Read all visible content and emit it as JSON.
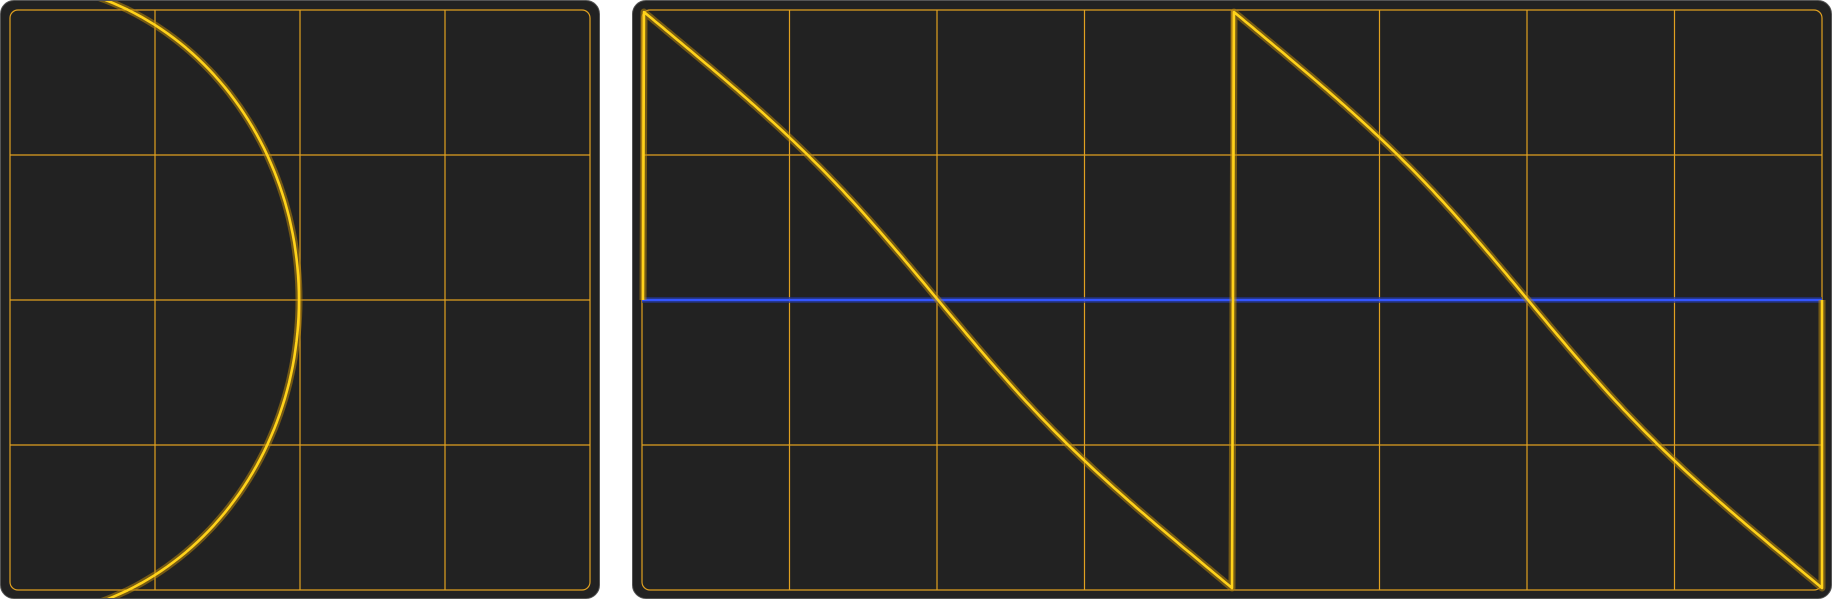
{
  "panels": [
    {
      "id": "xy-scope",
      "mode": "XY",
      "divisions": {
        "horizontal": 4,
        "vertical": 4
      },
      "trace": {
        "shape": "half-ellipse opening left",
        "color": "#ffd21a",
        "glow": "#b8860b"
      }
    },
    {
      "id": "time-scope",
      "mode": "time-domain",
      "divisions": {
        "horizontal": 8,
        "vertical": 4
      },
      "trace": {
        "shape": "sawtooth with smooth ramps",
        "periods": 2,
        "color": "#ffd21a",
        "glow": "#b8860b"
      },
      "baseline": {
        "color": "#3355ff"
      }
    }
  ],
  "colors": {
    "background": "#222222",
    "grid": "#e0a020",
    "frame_border": "#555555",
    "inner_border": "#e0a020"
  }
}
